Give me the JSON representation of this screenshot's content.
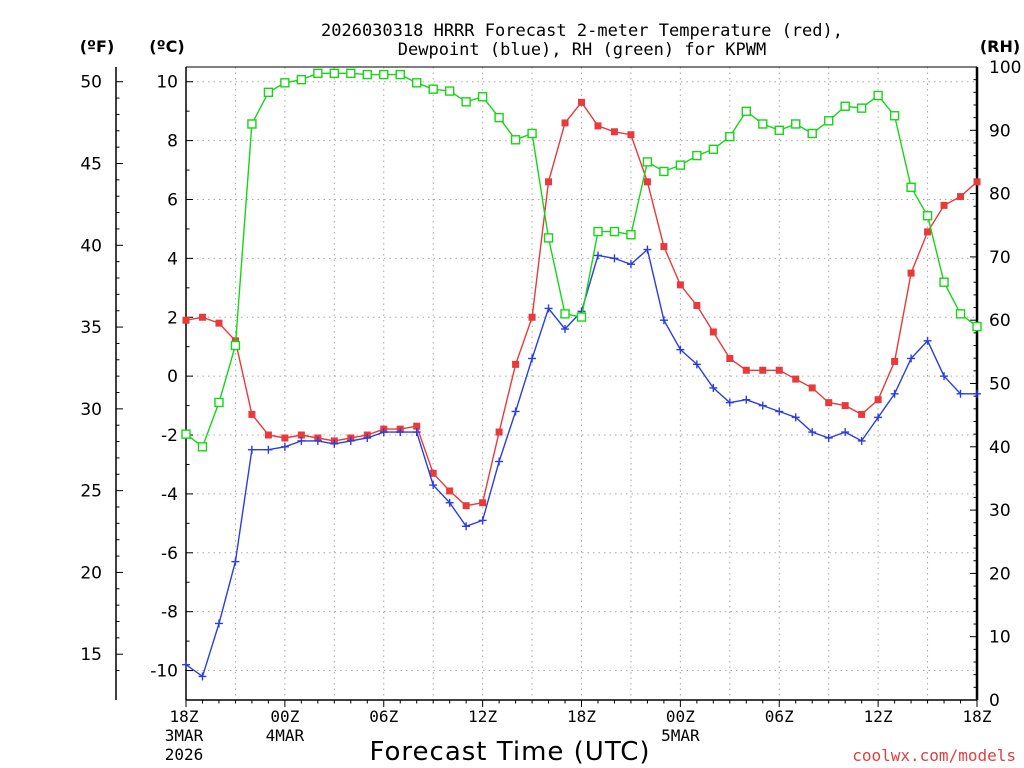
{
  "chart_data": {
    "type": "line",
    "title_line1": "2026030318 HRRR Forecast 2-meter Temperature (red),",
    "title_line2": "Dewpoint (blue), RH (green) for KPWM",
    "unit_f": "(ºF)",
    "unit_c": "(ºC)",
    "unit_rh": "(RH)",
    "xlabel": "Forecast Time (UTC)",
    "watermark": "coolwx.com/models",
    "hours": 48,
    "c_range": [
      -11.0,
      10.5
    ],
    "rh_range": [
      0,
      100
    ],
    "f_ticks": [
      "50",
      "45",
      "40",
      "35",
      "30",
      "25",
      "20",
      "15"
    ],
    "f_values": [
      50,
      45,
      40,
      35,
      30,
      25,
      20,
      15
    ],
    "c_ticks": [
      "10",
      "8",
      "6",
      "4",
      "2",
      "0",
      "-2",
      "-4",
      "-6",
      "-8",
      "-10"
    ],
    "c_values": [
      10,
      8,
      6,
      4,
      2,
      0,
      -2,
      -4,
      -6,
      -8,
      -10
    ],
    "rh_ticks": [
      "100",
      "90",
      "80",
      "70",
      "60",
      "50",
      "40",
      "30",
      "20",
      "10",
      "0"
    ],
    "rh_values": [
      100,
      90,
      80,
      70,
      60,
      50,
      40,
      30,
      20,
      10,
      0
    ],
    "x_ticks": [
      {
        "hour": 0,
        "lines": [
          "18Z",
          "3MAR",
          "2026"
        ]
      },
      {
        "hour": 6,
        "lines": [
          "00Z",
          "4MAR"
        ]
      },
      {
        "hour": 12,
        "lines": [
          "06Z"
        ]
      },
      {
        "hour": 18,
        "lines": [
          "12Z"
        ]
      },
      {
        "hour": 24,
        "lines": [
          "18Z"
        ]
      },
      {
        "hour": 30,
        "lines": [
          "00Z",
          "5MAR"
        ]
      },
      {
        "hour": 36,
        "lines": [
          "06Z"
        ]
      },
      {
        "hour": 42,
        "lines": [
          "12Z"
        ]
      },
      {
        "hour": 48,
        "lines": [
          "18Z"
        ]
      }
    ],
    "series": [
      {
        "name": "Temperature",
        "unit": "C",
        "color": "#e83a3a",
        "marker": "filled-square",
        "values": [
          1.9,
          2.0,
          1.8,
          1.2,
          -1.3,
          -2.0,
          -2.1,
          -2.0,
          -2.1,
          -2.2,
          -2.1,
          -2.0,
          -1.8,
          -1.8,
          -1.7,
          -3.3,
          -3.9,
          -4.4,
          -4.3,
          -1.9,
          0.4,
          2.0,
          6.6,
          8.6,
          9.3,
          8.5,
          8.3,
          8.2,
          6.6,
          4.4,
          3.1,
          2.4,
          1.5,
          0.6,
          0.2,
          0.2,
          0.2,
          -0.1,
          -0.4,
          -0.9,
          -1.0,
          -1.3,
          -0.8,
          0.5,
          3.5,
          4.9,
          5.8,
          6.1,
          6.6
        ]
      },
      {
        "name": "Dewpoint",
        "unit": "C",
        "color": "#2a3ee0",
        "marker": "plus",
        "values": [
          -9.8,
          -10.2,
          -8.4,
          -6.3,
          -2.5,
          -2.5,
          -2.4,
          -2.2,
          -2.2,
          -2.3,
          -2.2,
          -2.1,
          -1.9,
          -1.9,
          -1.9,
          -3.7,
          -4.3,
          -5.1,
          -4.9,
          -2.9,
          -1.2,
          0.6,
          2.3,
          1.6,
          2.2,
          4.1,
          4.0,
          3.8,
          4.3,
          1.9,
          0.9,
          0.4,
          -0.4,
          -0.9,
          -0.8,
          -1.0,
          -1.2,
          -1.4,
          -1.9,
          -2.1,
          -1.9,
          -2.2,
          -1.4,
          -0.6,
          0.6,
          1.2,
          0.0,
          -0.6,
          -0.6
        ]
      },
      {
        "name": "RH",
        "unit": "%",
        "color": "#15d615",
        "marker": "open-square",
        "values": [
          42,
          40,
          47,
          56,
          91,
          96,
          97.5,
          98,
          99,
          99,
          99,
          98.8,
          98.8,
          98.8,
          97.5,
          96.5,
          96.2,
          94.5,
          95.3,
          92,
          88.5,
          89.5,
          73,
          61,
          60.5,
          74,
          74,
          73.5,
          85,
          83.5,
          84.5,
          86,
          87,
          89,
          93,
          91,
          90,
          91,
          89.5,
          91.5,
          93.8,
          93.5,
          95.5,
          92.3,
          81,
          76.5,
          66,
          61,
          59
        ]
      }
    ]
  }
}
